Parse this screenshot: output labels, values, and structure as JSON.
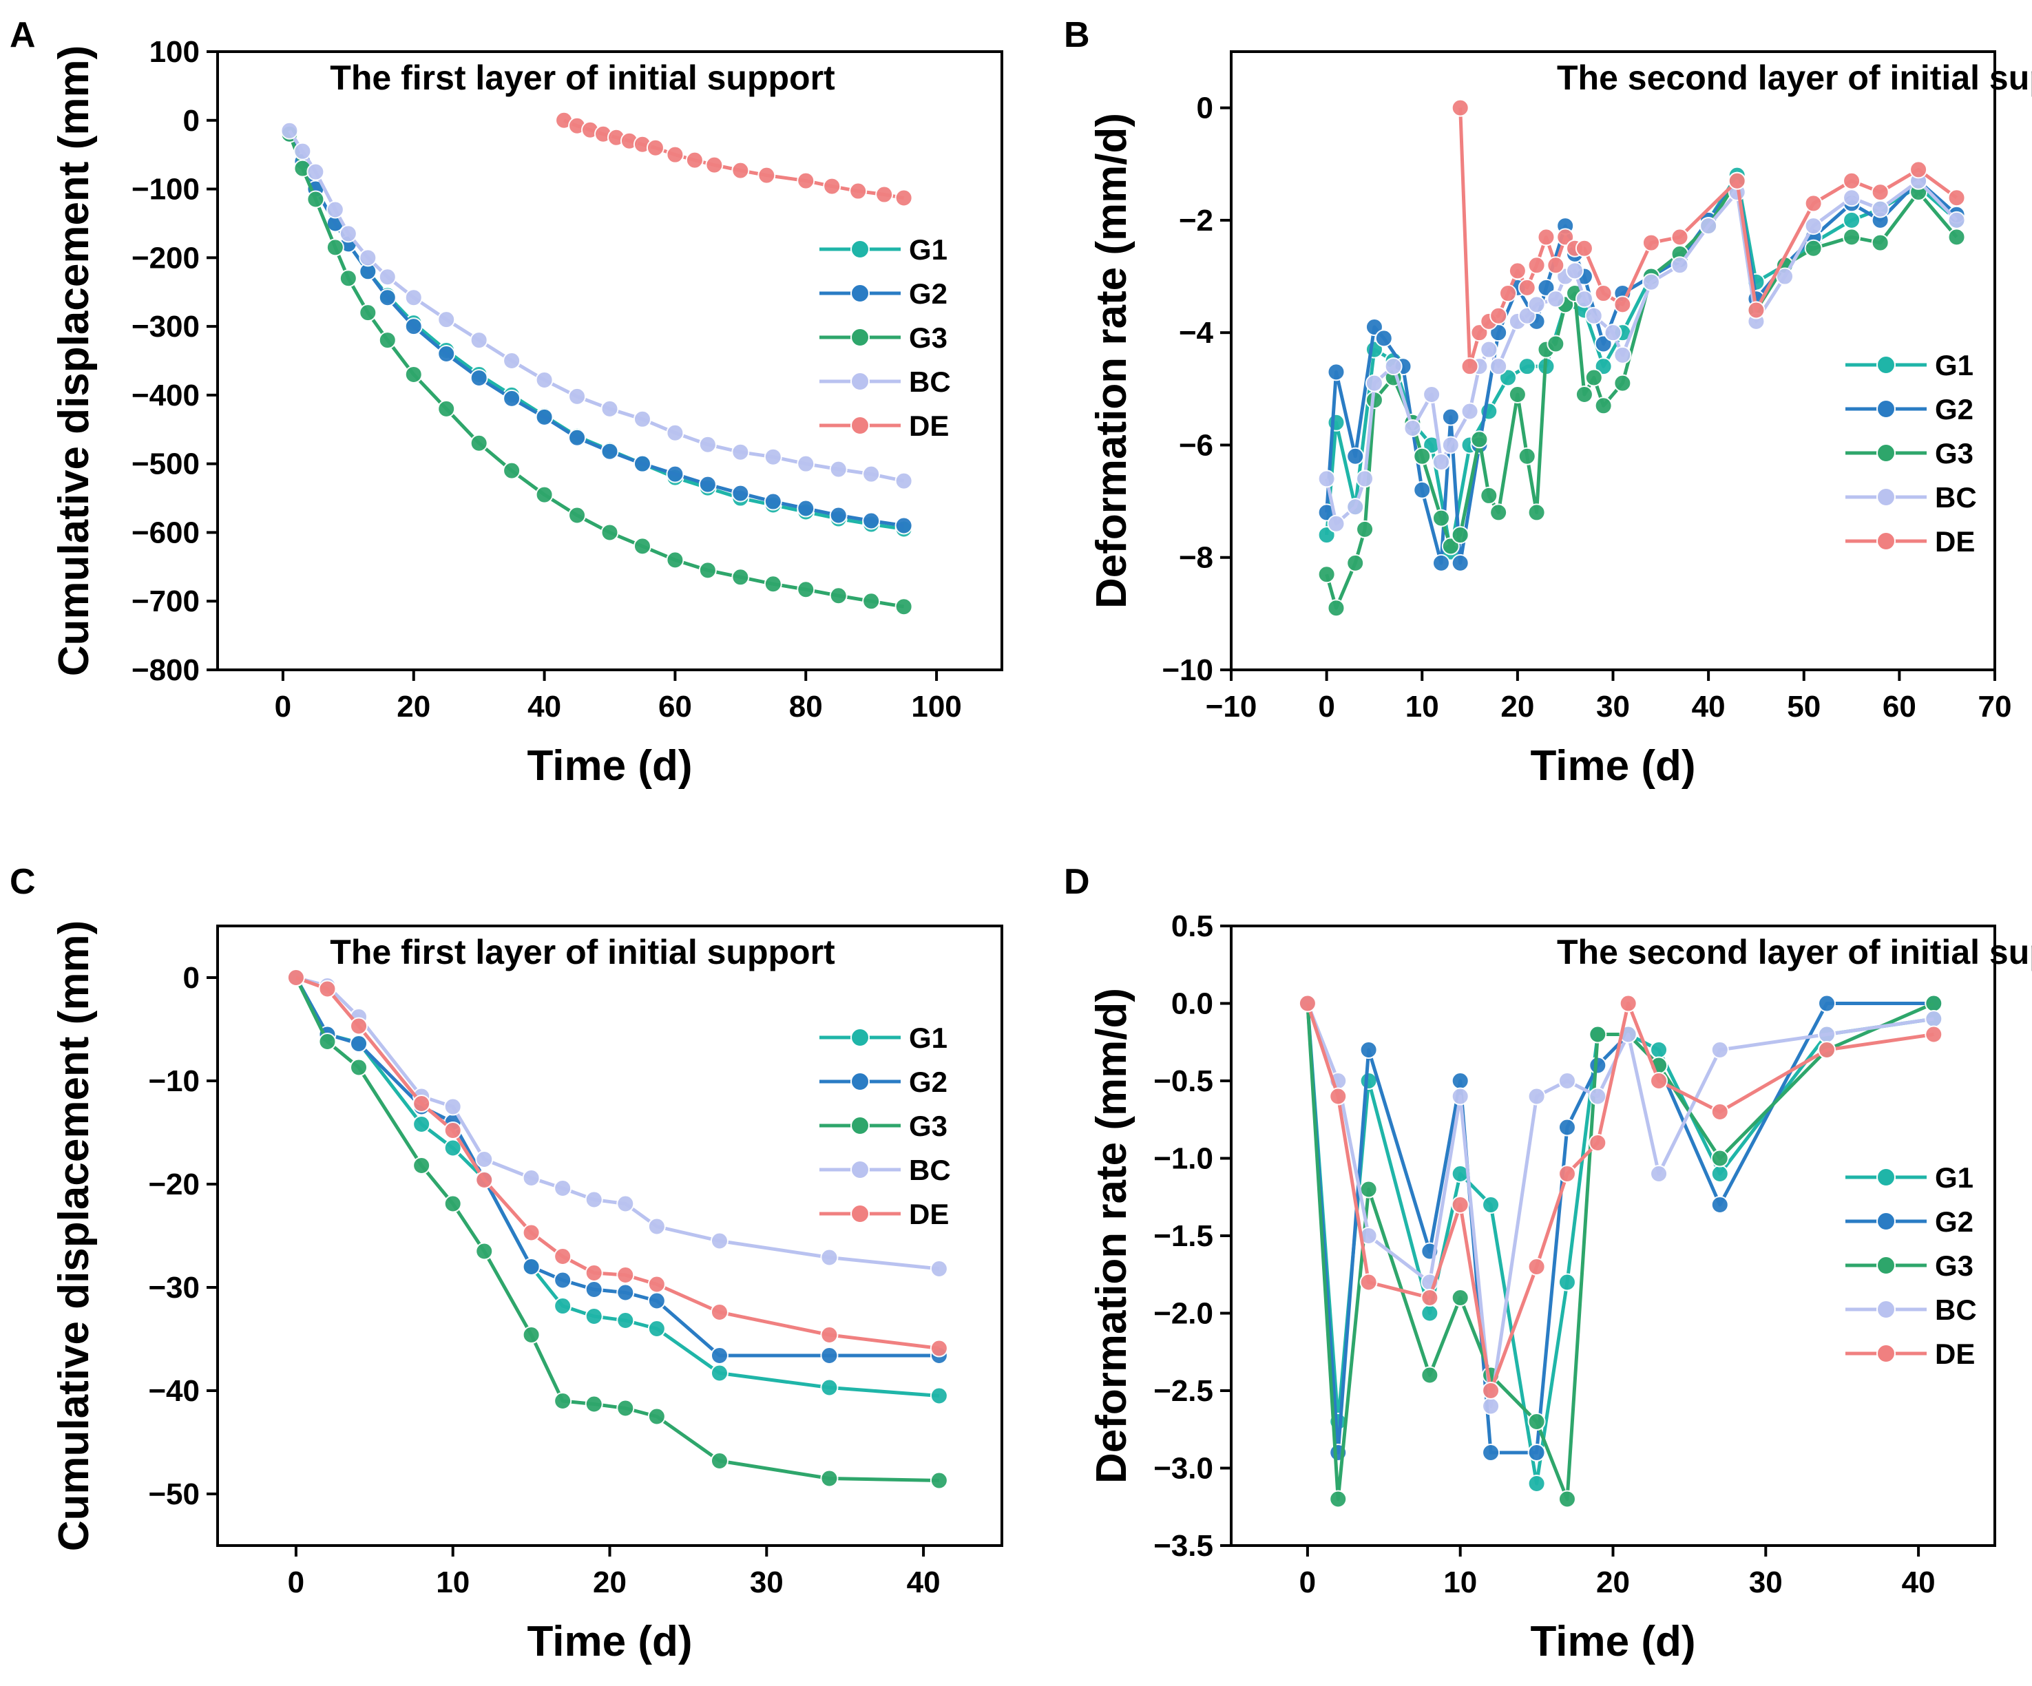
{
  "chart_data": [
    {
      "panel": "A",
      "type": "line",
      "title": "The first layer of initial support",
      "xlabel": "Time (d)",
      "ylabel": "Cumulative displacement (mm)",
      "xlim": [
        -10,
        110
      ],
      "ylim": [
        -800,
        100
      ],
      "xticks": [
        0,
        20,
        40,
        60,
        80,
        100
      ],
      "yticks": [
        100,
        0,
        -100,
        -200,
        -300,
        -400,
        -500,
        -600,
        -700,
        -800
      ],
      "legend_position": "center-right",
      "series": [
        {
          "name": "G1",
          "color": "#1fb5a8",
          "x": [
            1,
            3,
            5,
            8,
            10,
            13,
            16,
            20,
            25,
            30,
            35,
            40,
            45,
            50,
            55,
            60,
            65,
            70,
            75,
            80,
            85,
            90,
            95
          ],
          "y": [
            -20,
            -60,
            -100,
            -150,
            -180,
            -220,
            -255,
            -295,
            -335,
            -370,
            -400,
            -430,
            -460,
            -480,
            -500,
            -520,
            -535,
            -550,
            -560,
            -570,
            -580,
            -588,
            -595
          ]
        },
        {
          "name": "G2",
          "color": "#2a7cc4",
          "x": [
            1,
            3,
            5,
            8,
            10,
            13,
            16,
            20,
            25,
            30,
            35,
            40,
            45,
            50,
            55,
            60,
            65,
            70,
            75,
            80,
            85,
            90,
            95
          ],
          "y": [
            -20,
            -60,
            -100,
            -150,
            -180,
            -220,
            -258,
            -300,
            -340,
            -375,
            -405,
            -432,
            -462,
            -482,
            -500,
            -515,
            -530,
            -543,
            -555,
            -565,
            -575,
            -583,
            -590
          ]
        },
        {
          "name": "G3",
          "color": "#2ea66b",
          "x": [
            1,
            3,
            5,
            8,
            10,
            13,
            16,
            20,
            25,
            30,
            35,
            40,
            45,
            50,
            55,
            60,
            65,
            70,
            75,
            80,
            85,
            90,
            95
          ],
          "y": [
            -20,
            -70,
            -115,
            -185,
            -230,
            -280,
            -320,
            -370,
            -420,
            -470,
            -510,
            -545,
            -575,
            -600,
            -620,
            -640,
            -655,
            -665,
            -675,
            -683,
            -692,
            -700,
            -708
          ]
        },
        {
          "name": "BC",
          "color": "#b9c2f0",
          "x": [
            1,
            3,
            5,
            8,
            10,
            13,
            16,
            20,
            25,
            30,
            35,
            40,
            45,
            50,
            55,
            60,
            65,
            70,
            75,
            80,
            85,
            90,
            95
          ],
          "y": [
            -15,
            -45,
            -75,
            -130,
            -165,
            -200,
            -228,
            -258,
            -290,
            -320,
            -350,
            -378,
            -402,
            -420,
            -435,
            -455,
            -472,
            -483,
            -490,
            -500,
            -508,
            -515,
            -525
          ]
        },
        {
          "name": "DE",
          "color": "#f08080",
          "x": [
            43,
            45,
            47,
            49,
            51,
            53,
            55,
            57,
            60,
            63,
            66,
            70,
            74,
            80,
            84,
            88,
            92,
            95
          ],
          "y": [
            0,
            -8,
            -14,
            -20,
            -25,
            -30,
            -35,
            -40,
            -50,
            -58,
            -65,
            -73,
            -80,
            -88,
            -96,
            -103,
            -108,
            -113
          ]
        }
      ]
    },
    {
      "panel": "B",
      "type": "line",
      "title": "The second layer of initial support",
      "xlabel": "Time (d)",
      "ylabel": "Deformation rate (mm/d)",
      "xlim": [
        -10,
        70
      ],
      "ylim": [
        -10,
        1
      ],
      "xticks": [
        -10,
        0,
        10,
        20,
        30,
        40,
        50,
        60,
        70
      ],
      "yticks": [
        0,
        -2,
        -4,
        -6,
        -8,
        -10
      ],
      "legend_position": "lower-right",
      "series": [
        {
          "name": "G1",
          "color": "#1fb5a8",
          "x": [
            0,
            1,
            3,
            5,
            7,
            9,
            11,
            13,
            15,
            17,
            19,
            21,
            23,
            25,
            27,
            29,
            31,
            34,
            37,
            40,
            43,
            45,
            48,
            51,
            55,
            58,
            62,
            66
          ],
          "y": [
            -7.6,
            -5.6,
            -7.1,
            -4.3,
            -4.5,
            -5.6,
            -6.0,
            -7.9,
            -6.0,
            -5.4,
            -4.8,
            -4.6,
            -4.6,
            -3.5,
            -3.6,
            -4.6,
            -4.0,
            -3.0,
            -2.7,
            -2.0,
            -1.2,
            -3.1,
            -2.8,
            -2.4,
            -2.0,
            -1.8,
            -1.4,
            -2.0
          ]
        },
        {
          "name": "G2",
          "color": "#2a7cc4",
          "x": [
            0,
            1,
            3,
            5,
            6,
            8,
            10,
            12,
            13,
            14,
            16,
            18,
            20,
            22,
            23,
            25,
            26,
            27,
            29,
            31,
            34,
            37,
            40,
            43,
            45,
            48,
            51,
            55,
            58,
            62,
            66
          ],
          "y": [
            -7.2,
            -4.7,
            -6.2,
            -3.9,
            -4.1,
            -4.6,
            -6.8,
            -8.1,
            -5.5,
            -8.1,
            -6.0,
            -4.0,
            -3.2,
            -3.8,
            -3.2,
            -2.1,
            -2.6,
            -3.0,
            -4.2,
            -3.3,
            -3.0,
            -2.7,
            -2.0,
            -1.3,
            -3.4,
            -2.8,
            -2.3,
            -1.7,
            -2.0,
            -1.3,
            -1.9
          ]
        },
        {
          "name": "G3",
          "color": "#2ea66b",
          "x": [
            0,
            1,
            3,
            4,
            5,
            7,
            9,
            10,
            12,
            13,
            14,
            16,
            17,
            18,
            20,
            21,
            22,
            23,
            24,
            25,
            26,
            27,
            28,
            29,
            31,
            34,
            37,
            40,
            43,
            45,
            48,
            51,
            55,
            58,
            62,
            66
          ],
          "y": [
            -8.3,
            -8.9,
            -8.1,
            -7.5,
            -5.2,
            -4.8,
            -5.6,
            -6.2,
            -7.3,
            -7.8,
            -7.6,
            -5.9,
            -6.9,
            -7.2,
            -5.1,
            -6.2,
            -7.2,
            -4.3,
            -4.2,
            -3.5,
            -3.3,
            -5.1,
            -4.8,
            -5.3,
            -4.9,
            -3.0,
            -2.6,
            -2.1,
            -1.3,
            -3.6,
            -2.8,
            -2.5,
            -2.3,
            -2.4,
            -1.5,
            -2.3
          ]
        },
        {
          "name": "BC",
          "color": "#b9c2f0",
          "x": [
            0,
            1,
            3,
            4,
            5,
            7,
            9,
            11,
            12,
            13,
            15,
            16,
            17,
            18,
            20,
            21,
            22,
            24,
            25,
            26,
            27,
            28,
            30,
            31,
            34,
            37,
            40,
            43,
            45,
            48,
            51,
            55,
            58,
            62,
            66
          ],
          "y": [
            -6.6,
            -7.4,
            -7.1,
            -6.6,
            -4.9,
            -4.6,
            -5.7,
            -5.1,
            -6.3,
            -6.0,
            -5.4,
            -4.6,
            -4.3,
            -4.6,
            -3.8,
            -3.7,
            -3.5,
            -3.4,
            -3.0,
            -2.9,
            -3.4,
            -3.7,
            -4.0,
            -4.4,
            -3.1,
            -2.8,
            -2.1,
            -1.5,
            -3.8,
            -3.0,
            -2.1,
            -1.6,
            -1.8,
            -1.3,
            -2.0
          ]
        },
        {
          "name": "DE",
          "color": "#f08080",
          "x": [
            14,
            15,
            16,
            17,
            18,
            19,
            20,
            21,
            22,
            23,
            24,
            25,
            26,
            27,
            29,
            31,
            34,
            37,
            43,
            45,
            51,
            55,
            58,
            62,
            66
          ],
          "y": [
            0,
            -4.6,
            -4.0,
            -3.8,
            -3.7,
            -3.3,
            -2.9,
            -3.2,
            -2.8,
            -2.3,
            -2.8,
            -2.3,
            -2.5,
            -2.5,
            -3.3,
            -3.5,
            -2.4,
            -2.3,
            -1.3,
            -3.6,
            -1.7,
            -1.3,
            -1.5,
            -1.1,
            -1.6
          ]
        }
      ]
    },
    {
      "panel": "C",
      "type": "line",
      "title": "The first layer of initial support",
      "xlabel": "Time (d)",
      "ylabel": "Cumulative displacement (mm)",
      "xlim": [
        -5,
        45
      ],
      "ylim": [
        -55,
        5
      ],
      "xticks": [
        0,
        10,
        20,
        30,
        40
      ],
      "yticks": [
        0,
        -10,
        -20,
        -30,
        -40,
        -50
      ],
      "legend_position": "top-right",
      "series": [
        {
          "name": "G1",
          "color": "#1fb5a8",
          "x": [
            0,
            2,
            4,
            8,
            10,
            12,
            15,
            17,
            19,
            21,
            23,
            27,
            34,
            41
          ],
          "y": [
            0,
            -5.5,
            -6.3,
            -14.2,
            -16.5,
            -19.5,
            -28.0,
            -31.8,
            -32.8,
            -33.2,
            -34.0,
            -38.3,
            -39.7,
            -40.5
          ]
        },
        {
          "name": "G2",
          "color": "#2a7cc4",
          "x": [
            0,
            2,
            4,
            8,
            10,
            12,
            15,
            17,
            19,
            21,
            23,
            27,
            34,
            41
          ],
          "y": [
            0,
            -5.5,
            -6.4,
            -12.5,
            -14.0,
            -19.5,
            -28.0,
            -29.3,
            -30.2,
            -30.5,
            -31.3,
            -36.6,
            -36.6,
            -36.6
          ]
        },
        {
          "name": "G3",
          "color": "#2ea66b",
          "x": [
            0,
            2,
            4,
            8,
            10,
            12,
            15,
            17,
            19,
            21,
            23,
            27,
            34,
            41
          ],
          "y": [
            0,
            -6.2,
            -8.7,
            -18.2,
            -21.9,
            -26.5,
            -34.6,
            -41.0,
            -41.3,
            -41.7,
            -42.5,
            -46.8,
            -48.5,
            -48.7
          ]
        },
        {
          "name": "BC",
          "color": "#b9c2f0",
          "x": [
            0,
            2,
            4,
            8,
            10,
            12,
            15,
            17,
            19,
            21,
            23,
            27,
            34,
            41
          ],
          "y": [
            0,
            -0.8,
            -3.8,
            -11.5,
            -12.5,
            -17.6,
            -19.4,
            -20.4,
            -21.5,
            -21.9,
            -24.1,
            -25.5,
            -27.1,
            -28.2
          ]
        },
        {
          "name": "DE",
          "color": "#f08080",
          "x": [
            0,
            2,
            4,
            8,
            10,
            12,
            15,
            17,
            19,
            21,
            23,
            27,
            34,
            41
          ],
          "y": [
            0,
            -1.1,
            -4.7,
            -12.2,
            -14.8,
            -19.6,
            -24.7,
            -27.0,
            -28.6,
            -28.8,
            -29.7,
            -32.4,
            -34.6,
            -35.9
          ]
        }
      ]
    },
    {
      "panel": "D",
      "type": "line",
      "title": "The second layer of initial support",
      "xlabel": "Time (d)",
      "ylabel": "Deformation rate (mm/d)",
      "xlim": [
        -5,
        45
      ],
      "ylim": [
        -3.5,
        0.5
      ],
      "xticks": [
        0,
        10,
        20,
        30,
        40
      ],
      "yticks": [
        0.5,
        0.0,
        -0.5,
        -1.0,
        -1.5,
        -2.0,
        -2.5,
        -3.0,
        -3.5
      ],
      "ytick_labels": [
        "0.5",
        "0.0",
        "−0.5",
        "−1.0",
        "−1.5",
        "−2.0",
        "−2.5",
        "−3.0",
        "−3.5"
      ],
      "legend_position": "lower-right",
      "series": [
        {
          "name": "G1",
          "color": "#1fb5a8",
          "x": [
            0,
            2,
            4,
            8,
            10,
            12,
            15,
            17,
            19,
            21,
            23,
            27,
            34,
            41
          ],
          "y": [
            0,
            -2.7,
            -0.5,
            -2.0,
            -1.1,
            -1.3,
            -3.1,
            -1.8,
            -0.2,
            -0.2,
            -0.3,
            -1.1,
            -0.2,
            -0.1
          ]
        },
        {
          "name": "G2",
          "color": "#2a7cc4",
          "x": [
            0,
            2,
            4,
            8,
            10,
            12,
            15,
            17,
            19,
            21,
            23,
            27,
            34,
            41
          ],
          "y": [
            0,
            -2.9,
            -0.3,
            -1.6,
            -0.5,
            -2.9,
            -2.9,
            -0.8,
            -0.4,
            -0.2,
            -0.4,
            -1.3,
            0,
            0
          ]
        },
        {
          "name": "G3",
          "color": "#2ea66b",
          "x": [
            0,
            2,
            4,
            8,
            10,
            12,
            15,
            17,
            19,
            21,
            23,
            27,
            34,
            41
          ],
          "y": [
            0,
            -3.2,
            -1.2,
            -2.4,
            -1.9,
            -2.4,
            -2.7,
            -3.2,
            -0.2,
            -0.2,
            -0.4,
            -1.0,
            -0.3,
            0
          ]
        },
        {
          "name": "BC",
          "color": "#b9c2f0",
          "x": [
            0,
            2,
            4,
            8,
            10,
            12,
            15,
            17,
            19,
            21,
            23,
            27,
            34,
            41
          ],
          "y": [
            0,
            -0.5,
            -1.5,
            -1.8,
            -0.6,
            -2.6,
            -0.6,
            -0.5,
            -0.6,
            -0.2,
            -1.1,
            -0.3,
            -0.2,
            -0.1
          ]
        },
        {
          "name": "DE",
          "color": "#f08080",
          "x": [
            0,
            2,
            4,
            8,
            10,
            12,
            15,
            17,
            19,
            21,
            23,
            27,
            34,
            41
          ],
          "y": [
            0,
            -0.6,
            -1.8,
            -1.9,
            -1.3,
            -2.5,
            -1.7,
            -1.1,
            -0.9,
            0,
            -0.5,
            -0.7,
            -0.3,
            -0.2
          ]
        }
      ]
    }
  ]
}
